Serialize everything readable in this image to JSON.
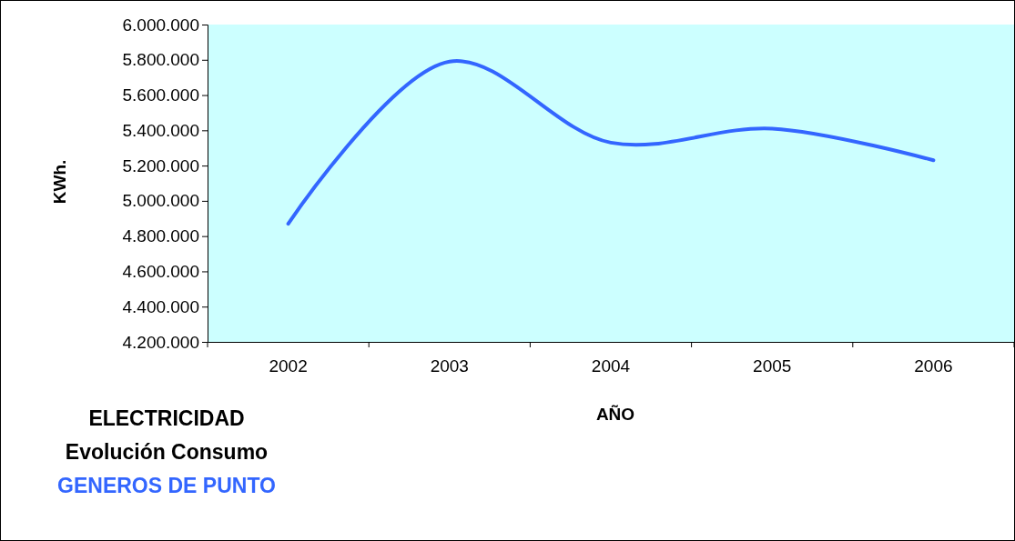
{
  "chart_data": {
    "type": "line",
    "title": "ELECTRICIDAD",
    "subtitle": "Evolución Consumo",
    "annotations": [
      "GENEROS DE PUNTO"
    ],
    "xlabel": "AÑO",
    "ylabel": "KWh.",
    "categories": [
      "2002",
      "2003",
      "2004",
      "2005",
      "2006"
    ],
    "series": [
      {
        "color": "#3366ff",
        "values": [
          4870000,
          5790000,
          5330000,
          5410000,
          5230000
        ]
      }
    ],
    "ylim": [
      4200000,
      6000000
    ],
    "yticks": [
      {
        "value": 4200000,
        "label": "4.200.000"
      },
      {
        "value": 4400000,
        "label": "4.400.000"
      },
      {
        "value": 4600000,
        "label": "4.600.000"
      },
      {
        "value": 4800000,
        "label": "4.800.000"
      },
      {
        "value": 5000000,
        "label": "5.000.000"
      },
      {
        "value": 5200000,
        "label": "5.200.000"
      },
      {
        "value": 5400000,
        "label": "5.400.000"
      },
      {
        "value": 5600000,
        "label": "5.600.000"
      },
      {
        "value": 5800000,
        "label": "5.800.000"
      },
      {
        "value": 6000000,
        "label": "6.000.000"
      }
    ],
    "grid": false,
    "marker": "none",
    "line_style": "solid"
  }
}
